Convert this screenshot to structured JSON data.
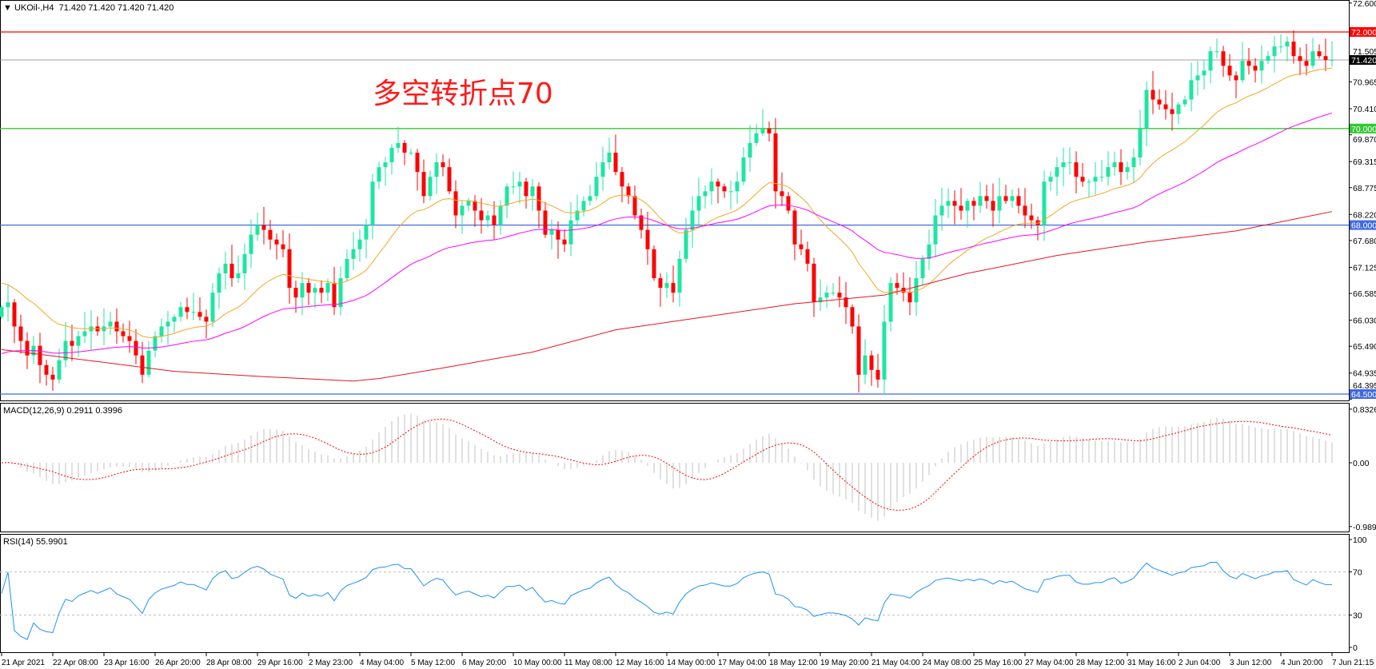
{
  "header": {
    "symbol_label": "UKOil-,H4",
    "ohlc_text": "71.420 71.420 71.420 71.420",
    "menu_icon": "triangle-down-icon"
  },
  "annotation": {
    "text": "多空转折点70",
    "color": "#ff1a1a"
  },
  "macd_panel": {
    "label": "MACD(12,26,9) 0.2911 0.3996",
    "ticks": [
      "0.8326",
      "0.00",
      "-0.9897"
    ],
    "range": [
      -0.9897,
      0.8326
    ]
  },
  "rsi_panel": {
    "label": "RSI(14) 55.9901",
    "ticks": [
      "100",
      "70",
      "30",
      "0"
    ],
    "levels": [
      30,
      70
    ]
  },
  "colors": {
    "bull": "#1ee6a0",
    "bear": "#ff0000",
    "ma_fast": "#f5a623",
    "ma_mid": "#ff00ff",
    "ma_slow": "#e8141e",
    "macd_hist": "#c0c0c0",
    "macd_signal": "#ff0000",
    "rsi": "#1e90ff",
    "grid_level": "#c0c0c0"
  },
  "chart_data": {
    "type": "candlestick",
    "symbol": "UKOil-",
    "timeframe": "H4",
    "price_range": [
      64.395,
      72.6
    ],
    "price_ticks": [
      "72.600",
      "71.505",
      "70.965",
      "70.410",
      "69.870",
      "69.315",
      "68.775",
      "68.220",
      "67.680",
      "67.125",
      "66.585",
      "66.030",
      "65.490",
      "64.935",
      "64.395"
    ],
    "time_labels": [
      "21 Apr 2021",
      "22 Apr 08:00",
      "23 Apr 16:00",
      "26 Apr 20:00",
      "28 Apr 08:00",
      "29 Apr 16:00",
      "2 May 23:00",
      "4 May 04:00",
      "5 May 12:00",
      "6 May 20:00",
      "10 May 00:00",
      "11 May 08:00",
      "12 May 16:00",
      "14 May 00:00",
      "17 May 04:00",
      "18 May 12:00",
      "19 May 20:00",
      "21 May 04:00",
      "24 May 08:00",
      "25 May 16:00",
      "27 May 04:00",
      "28 May 12:00",
      "31 May 16:00",
      "2 Jun 04:00",
      "3 Jun 12:00",
      "4 Jun 20:00",
      "7 Jun 21:15"
    ],
    "bars_per_time_label": 8,
    "close": [
      66.3,
      66.4,
      65.9,
      65.6,
      65.3,
      65.5,
      65.1,
      64.9,
      64.8,
      65.2,
      65.6,
      65.5,
      65.7,
      65.8,
      65.9,
      65.8,
      65.9,
      66.0,
      65.8,
      65.7,
      65.6,
      65.3,
      64.9,
      65.4,
      65.7,
      65.9,
      66.0,
      66.1,
      66.3,
      66.2,
      66.2,
      66.1,
      66.0,
      66.6,
      67.0,
      67.2,
      66.9,
      67.0,
      67.4,
      67.8,
      68.0,
      67.9,
      67.7,
      67.6,
      67.5,
      66.7,
      66.5,
      66.8,
      66.6,
      66.7,
      66.6,
      66.8,
      66.3,
      66.9,
      67.3,
      67.5,
      67.7,
      68.0,
      68.9,
      69.2,
      69.3,
      69.6,
      69.7,
      69.5,
      69.5,
      69.1,
      68.6,
      69.0,
      69.3,
      69.2,
      68.7,
      68.2,
      68.4,
      68.5,
      68.3,
      68.1,
      68.2,
      68.0,
      68.4,
      68.8,
      68.8,
      68.9,
      68.6,
      68.8,
      68.3,
      67.8,
      67.9,
      67.7,
      67.6,
      68.1,
      68.3,
      68.5,
      68.6,
      69.0,
      69.3,
      69.5,
      69.1,
      68.8,
      68.6,
      68.2,
      67.9,
      67.5,
      66.9,
      66.7,
      66.8,
      66.6,
      67.3,
      67.9,
      68.3,
      68.6,
      68.7,
      68.9,
      68.8,
      68.7,
      68.7,
      68.9,
      69.4,
      69.7,
      69.9,
      70.0,
      69.9,
      68.7,
      68.6,
      68.3,
      67.6,
      67.5,
      67.2,
      66.4,
      66.5,
      66.6,
      66.6,
      66.5,
      66.3,
      65.9,
      64.9,
      65.3,
      65.0,
      64.8,
      66.0,
      66.8,
      66.7,
      66.6,
      66.4,
      66.9,
      67.3,
      67.6,
      68.2,
      68.4,
      68.5,
      68.4,
      68.3,
      68.5,
      68.4,
      68.6,
      68.5,
      68.3,
      68.6,
      68.5,
      68.6,
      68.4,
      68.2,
      68.1,
      68.0,
      68.9,
      69.0,
      69.2,
      69.3,
      69.3,
      69.0,
      68.9,
      68.9,
      69.0,
      69.0,
      69.2,
      69.3,
      69.1,
      69.2,
      69.4,
      70.0,
      70.8,
      70.6,
      70.5,
      70.4,
      70.3,
      70.5,
      70.6,
      71.0,
      71.1,
      71.2,
      71.6,
      71.6,
      71.3,
      71.1,
      71.0,
      71.4,
      71.3,
      71.2,
      71.4,
      71.5,
      71.7,
      71.7,
      71.8,
      71.5,
      71.4,
      71.3,
      71.6,
      71.5,
      71.42,
      71.42
    ],
    "first_open": 66.1,
    "ma_fast": {
      "period": 21,
      "start": 66.85
    },
    "ma_mid": {
      "period": 55,
      "start": 65.3
    },
    "ma_slow": {
      "bars": [
        0,
        14,
        27,
        41,
        55,
        59,
        69,
        83,
        96,
        110,
        124,
        138,
        151,
        165,
        179,
        193,
        208
      ],
      "values": [
        65.42,
        65.19,
        64.97,
        64.86,
        64.77,
        64.82,
        65.04,
        65.37,
        65.83,
        66.1,
        66.37,
        66.55,
        67.0,
        67.37,
        67.65,
        67.88,
        68.28
      ]
    },
    "horizontal_lines": [
      {
        "price": "72.000",
        "color": "#ff0000"
      },
      {
        "price": "70.000",
        "color": "#32c832"
      },
      {
        "price": "68.000",
        "color": "#4169e1"
      },
      {
        "price": "64.500",
        "color": "#4169e1"
      }
    ],
    "bid_line": {
      "price": "71.420",
      "color": "#808080"
    }
  }
}
